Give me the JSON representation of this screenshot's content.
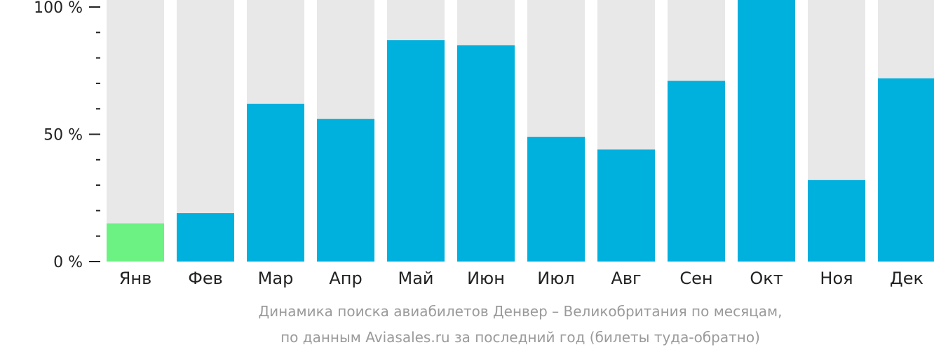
{
  "caption": {
    "line1": "Динамика поиска авиабилетов Денвер – Великобритания по месяцам,",
    "line2": "по данным Aviasales.ru за последний год (билеты туда-обратно)"
  },
  "colors": {
    "bar": "#00b0dd",
    "highlight": "#6cf283",
    "background_bar": "#e8e8e8",
    "axis": "#222222"
  },
  "chart_data": {
    "type": "bar",
    "categories": [
      "Янв",
      "Фев",
      "Мар",
      "Апр",
      "Май",
      "Июн",
      "Июл",
      "Авг",
      "Сен",
      "Окт",
      "Ноя",
      "Дек"
    ],
    "values": [
      15,
      19,
      62,
      56,
      87,
      85,
      49,
      44,
      71,
      104,
      32,
      72
    ],
    "highlight_index": 0,
    "ylim": [
      0,
      100
    ],
    "yticks": [
      {
        "value": 100,
        "label": "100 %"
      },
      {
        "value": 50,
        "label": "50 %"
      },
      {
        "value": 0,
        "label": "0 %"
      }
    ],
    "minor_ticks": [
      10,
      20,
      30,
      40,
      60,
      70,
      80,
      90
    ],
    "grid": false,
    "legend": "none"
  }
}
